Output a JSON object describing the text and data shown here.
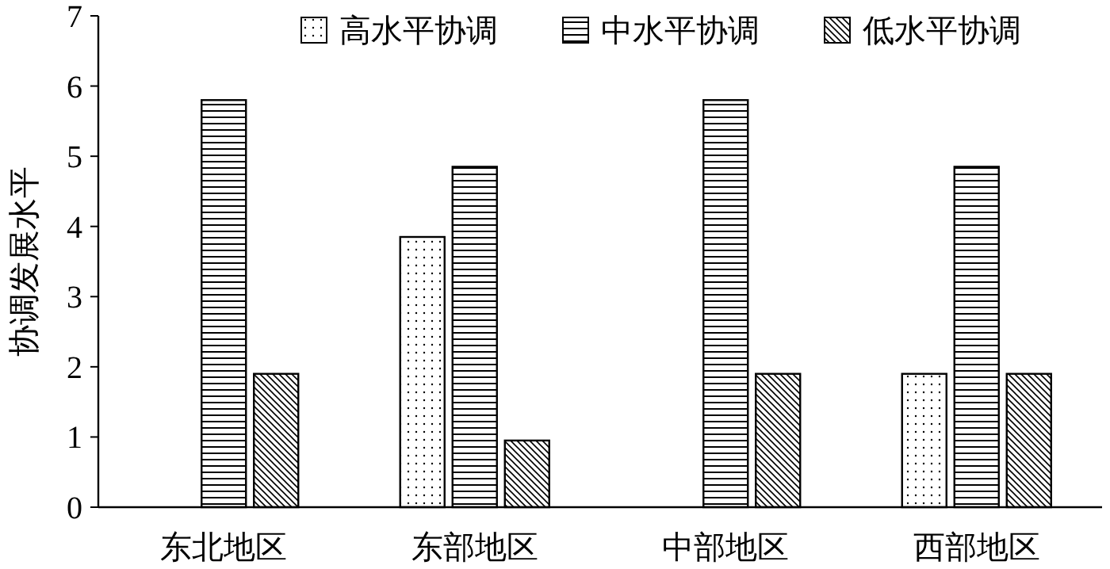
{
  "chart_data": {
    "type": "bar",
    "ylabel": "协调发展水平",
    "categories": [
      "东北地区",
      "东部地区",
      "中部地区",
      "西部地区"
    ],
    "series": [
      {
        "name": "高水平协调",
        "color": "#000000",
        "values": [
          0,
          3.85,
          0,
          1.9
        ]
      },
      {
        "name": "中水平协调",
        "color": "#000000",
        "values": [
          5.8,
          4.85,
          5.8,
          4.85
        ]
      },
      {
        "name": "低水平协调",
        "color": "#000000",
        "values": [
          1.9,
          0.95,
          1.9,
          1.9
        ]
      }
    ],
    "ylim": [
      0,
      7
    ],
    "yticks": [
      0,
      1,
      2,
      3,
      4,
      5,
      6,
      7
    ],
    "grid": false,
    "legend": "top"
  }
}
